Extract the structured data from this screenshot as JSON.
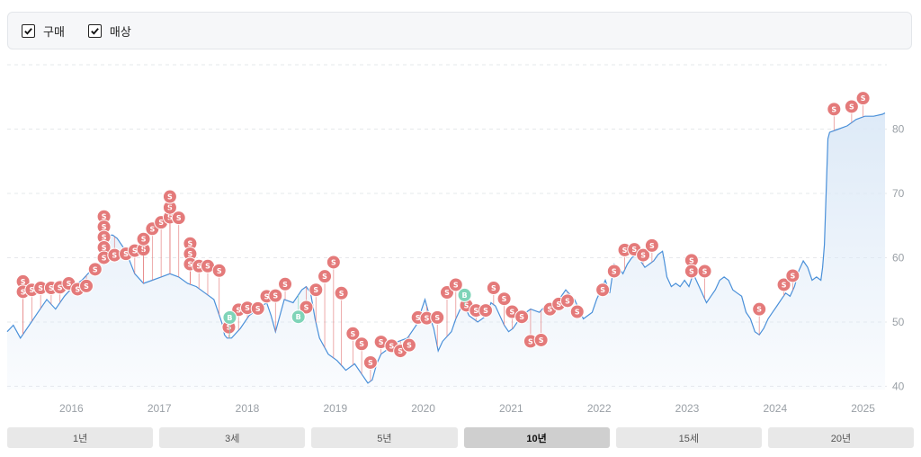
{
  "legend": [
    {
      "label": "구매",
      "checked": true,
      "color": "#7fd4b8"
    },
    {
      "label": "매상",
      "checked": true,
      "color": "#e47a7a"
    }
  ],
  "ranges": [
    {
      "label": "1년",
      "active": false
    },
    {
      "label": "3세",
      "active": false
    },
    {
      "label": "5년",
      "active": false
    },
    {
      "label": "10년",
      "active": true
    },
    {
      "label": "15세",
      "active": false
    },
    {
      "label": "20년",
      "active": false
    }
  ],
  "chart_data": {
    "type": "line",
    "title": "",
    "xlabel": "",
    "ylabel": "",
    "x_ticks": [
      "2016",
      "2017",
      "2018",
      "2019",
      "2020",
      "2021",
      "2022",
      "2023",
      "2024",
      "2025"
    ],
    "y_ticks": [
      40,
      50,
      60,
      70,
      80
    ],
    "xlim": [
      2015.35,
      2025.35
    ],
    "ylim": [
      39.5,
      90
    ],
    "grid": true,
    "line_color": "#4a90d9",
    "area_color": "#dce9f7",
    "series": [
      {
        "values": [
          [
            2015.35,
            48.5
          ],
          [
            2015.42,
            49.5
          ],
          [
            2015.5,
            47.5
          ],
          [
            2015.6,
            49.5
          ],
          [
            2015.7,
            51.5
          ],
          [
            2015.8,
            53.5
          ],
          [
            2015.9,
            52.0
          ],
          [
            2016.0,
            54.0
          ],
          [
            2016.1,
            55.5
          ],
          [
            2016.2,
            56.5
          ],
          [
            2016.3,
            58.0
          ],
          [
            2016.4,
            59.0
          ],
          [
            2016.45,
            61.0
          ],
          [
            2016.5,
            63.5
          ],
          [
            2016.55,
            63.5
          ],
          [
            2016.6,
            63.0
          ],
          [
            2016.7,
            61.0
          ],
          [
            2016.8,
            57.5
          ],
          [
            2016.9,
            56.0
          ],
          [
            2017.0,
            56.5
          ],
          [
            2017.1,
            57.0
          ],
          [
            2017.2,
            57.5
          ],
          [
            2017.3,
            57.0
          ],
          [
            2017.4,
            56.0
          ],
          [
            2017.5,
            55.5
          ],
          [
            2017.6,
            54.5
          ],
          [
            2017.7,
            53.5
          ],
          [
            2017.8,
            49.5
          ],
          [
            2017.82,
            48.0
          ],
          [
            2017.85,
            47.5
          ],
          [
            2017.9,
            47.5
          ],
          [
            2018.0,
            49.0
          ],
          [
            2018.1,
            51.0
          ],
          [
            2018.2,
            52.0
          ],
          [
            2018.3,
            53.0
          ],
          [
            2018.35,
            51.0
          ],
          [
            2018.4,
            48.5
          ],
          [
            2018.5,
            53.5
          ],
          [
            2018.6,
            53.0
          ],
          [
            2018.7,
            55.0
          ],
          [
            2018.75,
            55.5
          ],
          [
            2018.8,
            54.5
          ],
          [
            2018.85,
            50.5
          ],
          [
            2018.9,
            47.5
          ],
          [
            2019.0,
            45.0
          ],
          [
            2019.1,
            44.0
          ],
          [
            2019.2,
            42.5
          ],
          [
            2019.3,
            43.5
          ],
          [
            2019.4,
            41.5
          ],
          [
            2019.45,
            40.5
          ],
          [
            2019.5,
            41.0
          ],
          [
            2019.55,
            43.5
          ],
          [
            2019.6,
            45.0
          ],
          [
            2019.7,
            46.0
          ],
          [
            2019.8,
            47.0
          ],
          [
            2019.9,
            47.5
          ],
          [
            2020.0,
            49.5
          ],
          [
            2020.05,
            51.5
          ],
          [
            2020.1,
            53.5
          ],
          [
            2020.15,
            51.0
          ],
          [
            2020.2,
            49.0
          ],
          [
            2020.25,
            45.5
          ],
          [
            2020.3,
            47.0
          ],
          [
            2020.4,
            48.5
          ],
          [
            2020.45,
            50.5
          ],
          [
            2020.5,
            52.0
          ],
          [
            2020.55,
            52.5
          ],
          [
            2020.6,
            51.0
          ],
          [
            2020.7,
            50.0
          ],
          [
            2020.8,
            51.0
          ],
          [
            2020.85,
            53.0
          ],
          [
            2020.9,
            52.5
          ],
          [
            2021.0,
            49.5
          ],
          [
            2021.05,
            48.5
          ],
          [
            2021.1,
            49.0
          ],
          [
            2021.2,
            51.0
          ],
          [
            2021.3,
            52.0
          ],
          [
            2021.4,
            51.5
          ],
          [
            2021.5,
            53.0
          ],
          [
            2021.6,
            52.0
          ],
          [
            2021.65,
            54.0
          ],
          [
            2021.7,
            55.0
          ],
          [
            2021.8,
            53.5
          ],
          [
            2021.9,
            50.5
          ],
          [
            2022.0,
            51.5
          ],
          [
            2022.05,
            53.5
          ],
          [
            2022.1,
            55.0
          ],
          [
            2022.15,
            56.5
          ],
          [
            2022.2,
            54.5
          ],
          [
            2022.25,
            59.0
          ],
          [
            2022.3,
            58.5
          ],
          [
            2022.35,
            57.5
          ],
          [
            2022.4,
            59.0
          ],
          [
            2022.45,
            60.0
          ],
          [
            2022.5,
            60.5
          ],
          [
            2022.55,
            59.5
          ],
          [
            2022.6,
            58.5
          ],
          [
            2022.65,
            59.0
          ],
          [
            2022.7,
            59.5
          ],
          [
            2022.75,
            60.5
          ],
          [
            2022.8,
            61.0
          ],
          [
            2022.82,
            59.5
          ],
          [
            2022.85,
            57.0
          ],
          [
            2022.9,
            55.5
          ],
          [
            2022.95,
            56.0
          ],
          [
            2023.0,
            55.5
          ],
          [
            2023.05,
            56.5
          ],
          [
            2023.1,
            55.5
          ],
          [
            2023.15,
            57.5
          ],
          [
            2023.2,
            56.0
          ],
          [
            2023.25,
            54.5
          ],
          [
            2023.3,
            53.0
          ],
          [
            2023.35,
            54.0
          ],
          [
            2023.4,
            55.0
          ],
          [
            2023.45,
            56.5
          ],
          [
            2023.5,
            57.0
          ],
          [
            2023.55,
            56.5
          ],
          [
            2023.6,
            55.0
          ],
          [
            2023.65,
            54.5
          ],
          [
            2023.7,
            54.0
          ],
          [
            2023.75,
            51.5
          ],
          [
            2023.8,
            50.5
          ],
          [
            2023.85,
            48.5
          ],
          [
            2023.9,
            48.0
          ],
          [
            2023.95,
            49.0
          ],
          [
            2024.0,
            50.5
          ],
          [
            2024.05,
            51.5
          ],
          [
            2024.1,
            52.5
          ],
          [
            2024.15,
            53.5
          ],
          [
            2024.2,
            54.5
          ],
          [
            2024.25,
            54.0
          ],
          [
            2024.3,
            55.5
          ],
          [
            2024.35,
            58.0
          ],
          [
            2024.4,
            59.5
          ],
          [
            2024.45,
            58.5
          ],
          [
            2024.5,
            56.5
          ],
          [
            2024.55,
            57.0
          ],
          [
            2024.6,
            56.5
          ],
          [
            2024.62,
            58.5
          ],
          [
            2024.64,
            62.0
          ],
          [
            2024.66,
            70.0
          ],
          [
            2024.68,
            78.5
          ],
          [
            2024.7,
            79.5
          ],
          [
            2024.8,
            80.0
          ],
          [
            2024.9,
            80.5
          ],
          [
            2025.0,
            81.5
          ],
          [
            2025.1,
            82.0
          ],
          [
            2025.2,
            82.0
          ],
          [
            2025.3,
            82.3
          ],
          [
            2025.33,
            82.5
          ]
        ]
      }
    ],
    "markers": {
      "buy": [
        [
          2017.88,
          50.7
        ],
        [
          2018.66,
          50.8
        ],
        [
          2020.55,
          54.2
        ]
      ],
      "sell": [
        [
          2015.53,
          56.3
        ],
        [
          2015.53,
          54.7
        ],
        [
          2015.63,
          55.0
        ],
        [
          2015.73,
          55.3
        ],
        [
          2015.85,
          55.3
        ],
        [
          2015.95,
          55.4
        ],
        [
          2016.05,
          56.0
        ],
        [
          2016.15,
          55.1
        ],
        [
          2016.25,
          55.6
        ],
        [
          2016.35,
          58.2
        ],
        [
          2016.45,
          66.4
        ],
        [
          2016.45,
          64.8
        ],
        [
          2016.45,
          63.2
        ],
        [
          2016.45,
          61.6
        ],
        [
          2016.45,
          60.0
        ],
        [
          2016.57,
          60.4
        ],
        [
          2016.7,
          60.6
        ],
        [
          2016.8,
          61.1
        ],
        [
          2016.9,
          61.3
        ],
        [
          2016.9,
          62.9
        ],
        [
          2017.0,
          64.5
        ],
        [
          2017.1,
          65.5
        ],
        [
          2017.2,
          66.3
        ],
        [
          2017.2,
          67.8
        ],
        [
          2017.2,
          69.5
        ],
        [
          2017.3,
          66.2
        ],
        [
          2017.43,
          62.2
        ],
        [
          2017.43,
          60.6
        ],
        [
          2017.43,
          59.0
        ],
        [
          2017.53,
          58.7
        ],
        [
          2017.63,
          58.7
        ],
        [
          2017.76,
          58.0
        ],
        [
          2017.87,
          49.2
        ],
        [
          2017.98,
          51.9
        ],
        [
          2018.08,
          52.2
        ],
        [
          2018.2,
          52.1
        ],
        [
          2018.3,
          54.0
        ],
        [
          2018.4,
          54.1
        ],
        [
          2018.51,
          55.9
        ],
        [
          2018.75,
          52.3
        ],
        [
          2018.86,
          55.0
        ],
        [
          2018.96,
          57.1
        ],
        [
          2019.06,
          59.3
        ],
        [
          2019.15,
          54.5
        ],
        [
          2019.28,
          48.2
        ],
        [
          2019.38,
          46.6
        ],
        [
          2019.48,
          43.7
        ],
        [
          2019.6,
          46.9
        ],
        [
          2019.72,
          46.3
        ],
        [
          2019.82,
          45.5
        ],
        [
          2019.92,
          46.4
        ],
        [
          2020.02,
          50.7
        ],
        [
          2020.12,
          50.6
        ],
        [
          2020.24,
          50.7
        ],
        [
          2020.35,
          54.6
        ],
        [
          2020.45,
          55.8
        ],
        [
          2020.57,
          52.6
        ],
        [
          2020.68,
          51.8
        ],
        [
          2020.79,
          51.8
        ],
        [
          2020.88,
          55.3
        ],
        [
          2021.0,
          53.6
        ],
        [
          2021.09,
          51.6
        ],
        [
          2021.2,
          50.8
        ],
        [
          2021.3,
          47.0
        ],
        [
          2021.42,
          47.2
        ],
        [
          2021.52,
          52.0
        ],
        [
          2021.62,
          52.8
        ],
        [
          2021.72,
          53.3
        ],
        [
          2021.83,
          51.6
        ],
        [
          2022.12,
          55.0
        ],
        [
          2022.25,
          57.9
        ],
        [
          2022.37,
          61.2
        ],
        [
          2022.48,
          61.3
        ],
        [
          2022.58,
          60.4
        ],
        [
          2022.68,
          61.9
        ],
        [
          2023.13,
          59.6
        ],
        [
          2023.13,
          57.9
        ],
        [
          2023.28,
          57.9
        ],
        [
          2023.9,
          52.0
        ],
        [
          2024.18,
          55.8
        ],
        [
          2024.28,
          57.2
        ],
        [
          2024.75,
          83.1
        ],
        [
          2024.95,
          83.5
        ],
        [
          2025.08,
          84.8
        ]
      ]
    }
  }
}
